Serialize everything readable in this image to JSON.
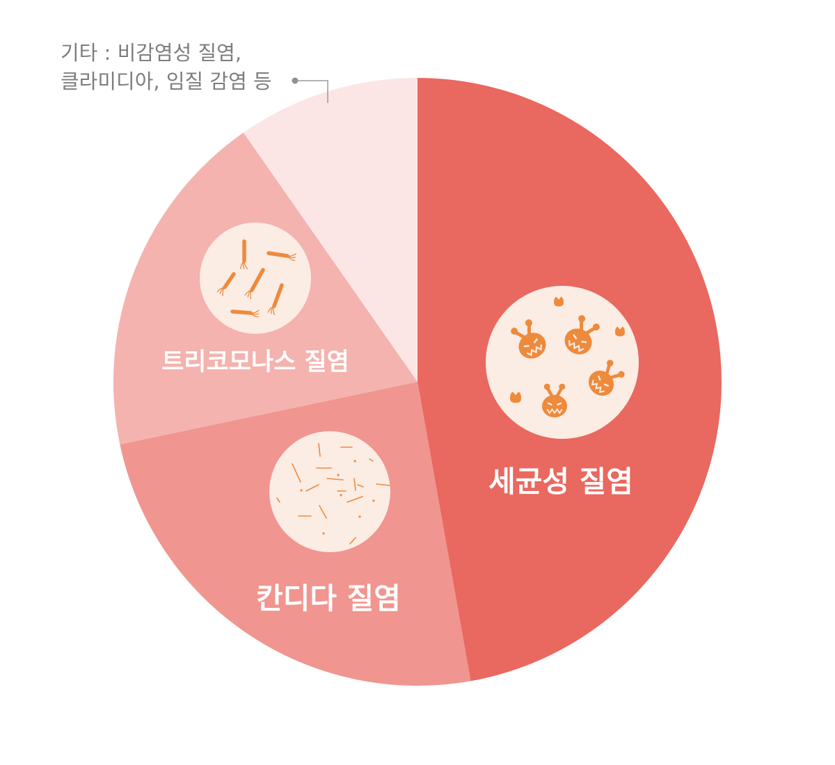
{
  "chart_data": {
    "type": "pie",
    "title": "",
    "start_angle_deg": 0,
    "direction": "clockwise",
    "legend": "none",
    "slices": [
      {
        "label": "세균성 질염",
        "value": 47.2,
        "color": "#E9685F",
        "icon": "bacteria-monster-icon"
      },
      {
        "label": "칸디다 질염",
        "value": 24.5,
        "color": "#F0958F",
        "icon": "candida-hyphae-icon"
      },
      {
        "label": "트리코모나스 질염",
        "value": 18.6,
        "color": "#F4B3AE",
        "icon": "trichomonas-flagellate-icon"
      },
      {
        "label": "",
        "value": 9.7,
        "color": "#FBE6E5",
        "icon": ""
      }
    ],
    "annotation": {
      "lines": [
        "기타 : 비감염성 질염,",
        "클라미디아, 임질 감염 등"
      ],
      "points_to_slice": 3
    }
  },
  "colors": {
    "icon_circle": "#FBECE4",
    "microbe": "#EE8A3C",
    "annotation_text": "#7D7D7D",
    "leader_line": "#9A9A9A"
  }
}
